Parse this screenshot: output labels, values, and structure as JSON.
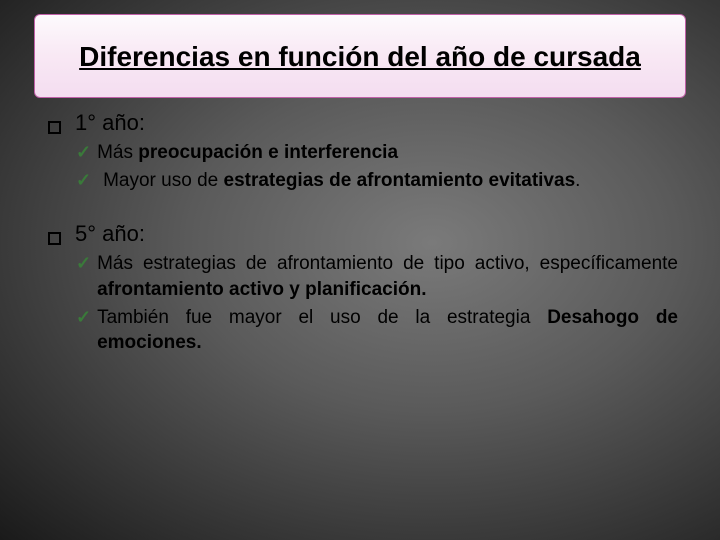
{
  "colors": {
    "title_bg_top": "#fdfafd",
    "title_bg_bottom": "#f4ddf0",
    "title_border": "#c060a8",
    "check_color": "#3a7a3a",
    "bg_center": "#7a7a7a",
    "bg_edge": "#1a1a1a"
  },
  "title": "Diferencias en función del año de cursada",
  "items": [
    {
      "header": "1° año:",
      "sub": [
        {
          "html": "Más <b>preocupación e interferencia</b>",
          "indent": false
        },
        {
          "html": " Mayor uso de <b>estrategias de afrontamiento evitativas</b>.",
          "indent": true
        }
      ]
    },
    {
      "header": "5° año:",
      "sub": [
        {
          "html": "Más estrategias de afrontamiento de tipo activo, específicamente <b>afrontamiento activo y planificación.</b>",
          "indent": false
        },
        {
          "html": "También fue mayor el uso de la estrategia <b>Desahogo de emociones.</b>",
          "indent": false
        }
      ]
    }
  ]
}
